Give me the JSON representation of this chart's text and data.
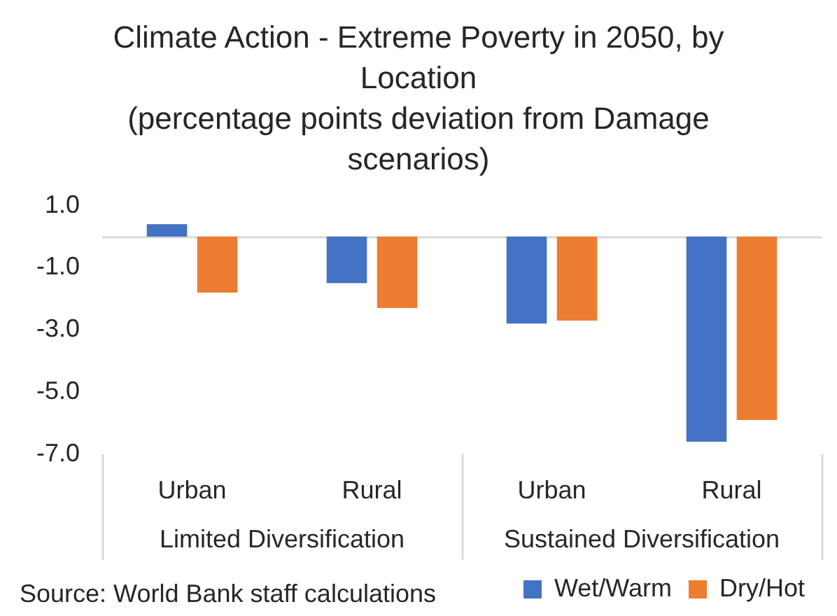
{
  "chart_data": {
    "type": "bar",
    "title": "Climate Action - Extreme Poverty in 2050, by Location",
    "subtitle": "(percentage points deviation from Damage scenarios)",
    "categories": [
      "Urban",
      "Rural",
      "Urban",
      "Rural"
    ],
    "series": [
      {
        "name": "Wet/Warm",
        "color": "#4472c4",
        "values": [
          0.4,
          -1.5,
          -2.8,
          -6.6
        ]
      },
      {
        "name": "Dry/Hot",
        "color": "#ed7d31",
        "values": [
          -1.8,
          -2.3,
          -2.7,
          -5.9
        ]
      }
    ],
    "ylim": [
      -7,
      1
    ],
    "yticks": [
      {
        "value": 1,
        "label": "1.0"
      },
      {
        "value": -1,
        "label": "-1.0"
      },
      {
        "value": -3,
        "label": "-3.0"
      },
      {
        "value": -5,
        "label": "-5.0"
      },
      {
        "value": -7,
        "label": "-7.0"
      }
    ],
    "grid": false,
    "legend": "bottom right",
    "annotations": [
      "Limited Diversification",
      "Sustained Diversification",
      "Source: World Bank staff calculations"
    ]
  }
}
